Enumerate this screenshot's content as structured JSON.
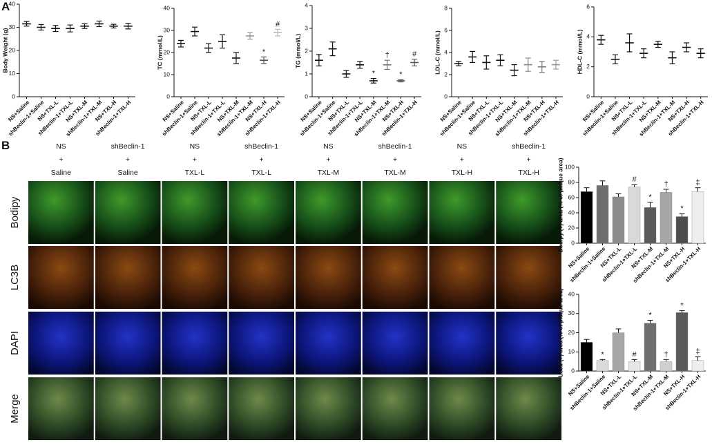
{
  "panel_labels": [
    "A",
    "B"
  ],
  "chart_data": [
    {
      "type": "errorbar",
      "ylabel": "Body Weight (g)",
      "categories": [
        "NS+Saline",
        "shBeclin-1+Saline",
        "NS+TXL-L",
        "shBeclin-1+TXL-L",
        "NS+TXL-M",
        "shBeclin-1+TXL-M",
        "NS+TXL-H",
        "shBeclin-1+TXL-H"
      ],
      "values": [
        31.5,
        30,
        29.5,
        29.5,
        30.5,
        31.5,
        30.5,
        30.5
      ],
      "errors": [
        1,
        1.2,
        1.3,
        1.5,
        1,
        1.2,
        0.8,
        1.2
      ],
      "colors": [
        "#111",
        "#111",
        "#111",
        "#111",
        "#111",
        "#111",
        "#111",
        "#111"
      ],
      "annotations": [
        null,
        null,
        null,
        null,
        null,
        null,
        null,
        null
      ],
      "ylim": [
        0,
        40
      ],
      "yticks": [
        0,
        10,
        20,
        30,
        40
      ]
    },
    {
      "type": "errorbar",
      "ylabel": "TC (mmol/L)",
      "categories": [
        "NS+Saline",
        "shBeclin-1+Saline",
        "NS+TXL-L",
        "shBeclin-1+TXL-L",
        "NS+TXL-M",
        "shBeclin-1+TXL-M",
        "NS+TXL-H",
        "shBeclin-1+TXL-H"
      ],
      "values": [
        24,
        29.5,
        22,
        25,
        17.5,
        27.5,
        16.5,
        29
      ],
      "errors": [
        1.5,
        2,
        2,
        3,
        2.5,
        1.5,
        1.5,
        1.5
      ],
      "colors": [
        "#111",
        "#111",
        "#111",
        "#111",
        "#111",
        "#999",
        "#555",
        "#bbb"
      ],
      "annotations": [
        null,
        null,
        null,
        null,
        null,
        null,
        "*",
        "#"
      ],
      "ylim": [
        0,
        40
      ],
      "yticks": [
        0,
        10,
        20,
        30,
        40
      ]
    },
    {
      "type": "errorbar",
      "ylabel": "TG (mmol/L)",
      "categories": [
        "NS+Saline",
        "shBeclin-1+Saline",
        "NS+TXL-L",
        "shBeclin-1+TXL-L",
        "NS+TXL-M",
        "shBeclin-1+TXL-M",
        "NS+TXL-H",
        "shBeclin-1+TXL-H"
      ],
      "values": [
        1.6,
        2.1,
        1.0,
        1.4,
        0.7,
        1.4,
        0.7,
        1.5
      ],
      "errors": [
        0.25,
        0.3,
        0.15,
        0.15,
        0.1,
        0.2,
        0.05,
        0.15
      ],
      "colors": [
        "#111",
        "#111",
        "#111",
        "#111",
        "#111",
        "#777",
        "#555",
        "#555"
      ],
      "annotations": [
        null,
        null,
        null,
        null,
        "*",
        "†",
        "*",
        "#"
      ],
      "ylim": [
        0,
        4
      ],
      "yticks": [
        0,
        1,
        2,
        3,
        4
      ]
    },
    {
      "type": "errorbar",
      "ylabel": "LDL-C (mmol/L)",
      "categories": [
        "NS+Saline",
        "shBeclin-1+Saline",
        "NS+TXL-L",
        "shBeclin-1+TXL-L",
        "NS+TXL-M",
        "shBeclin-1+TXL-M",
        "NS+TXL-H",
        "shBeclin-1+TXL-H"
      ],
      "values": [
        3.0,
        3.6,
        3.1,
        3.3,
        2.4,
        2.9,
        2.7,
        2.9
      ],
      "errors": [
        0.2,
        0.5,
        0.6,
        0.5,
        0.5,
        0.6,
        0.5,
        0.4
      ],
      "colors": [
        "#111",
        "#111",
        "#111",
        "#111",
        "#111",
        "#888",
        "#777",
        "#999"
      ],
      "annotations": [
        null,
        null,
        null,
        null,
        null,
        null,
        null,
        null
      ],
      "ylim": [
        0,
        8
      ],
      "yticks": [
        0,
        2,
        4,
        6,
        8
      ]
    },
    {
      "type": "errorbar",
      "ylabel": "HDL-C (mmol/L)",
      "categories": [
        "NS+Saline",
        "shBeclin-1+Saline",
        "NS+TXL-L",
        "shBeclin-1+TXL-L",
        "NS+TXL-M",
        "shBeclin-1+TXL-M",
        "NS+TXL-H",
        "shBeclin-1+TXL-H"
      ],
      "values": [
        3.8,
        2.5,
        3.6,
        2.9,
        3.5,
        2.6,
        3.3,
        2.9
      ],
      "errors": [
        0.3,
        0.3,
        0.6,
        0.3,
        0.2,
        0.4,
        0.3,
        0.3
      ],
      "colors": [
        "#111",
        "#111",
        "#111",
        "#111",
        "#111",
        "#111",
        "#111",
        "#111"
      ],
      "annotations": [
        null,
        null,
        null,
        null,
        null,
        null,
        null,
        null
      ],
      "ylim": [
        0,
        6
      ],
      "yticks": [
        0,
        2,
        4,
        6
      ]
    },
    {
      "type": "bar",
      "ylabel": "Bodipy (+) area (% of plaque area)",
      "categories": [
        "NS+Saline",
        "shBeclin-1+Saline",
        "NS+TXL-L",
        "shBeclin-1+TXL-L",
        "NS+TXL-M",
        "shBeclin-1+TXL-M",
        "NS+TXL-H",
        "shBeclin-1+TXL-H"
      ],
      "values": [
        68,
        76,
        61,
        74,
        47,
        67,
        35,
        68
      ],
      "errors": [
        5,
        6,
        4,
        3,
        7,
        4,
        4,
        5
      ],
      "colors": [
        "#000000",
        "#6e6e6e",
        "#8c8c8c",
        "#d9d9d9",
        "#5a5a5a",
        "#a6a6a6",
        "#4d4d4d",
        "#eeeeee"
      ],
      "annotations": [
        null,
        null,
        null,
        "#",
        "*",
        "†",
        "*",
        "‡"
      ],
      "ylim": [
        0,
        100
      ],
      "yticks": [
        0,
        20,
        40,
        60,
        80,
        100
      ]
    },
    {
      "type": "bar",
      "ylabel": "Lc3b (+) area (% of plaque area)",
      "categories": [
        "NS+Saline",
        "shBeclin-1+Saline",
        "NS+TXL-L",
        "shBeclin-1+TXL-L",
        "NS+TXL-M",
        "shBeclin-1+TXL-M",
        "NS+TXL-H",
        "shBeclin-1+TXL-H"
      ],
      "values": [
        15,
        5.5,
        20,
        5,
        25,
        5,
        30.5,
        5.5
      ],
      "errors": [
        1.5,
        0.5,
        2,
        1,
        1.5,
        1,
        1,
        2
      ],
      "colors": [
        "#000000",
        "#d9d9d9",
        "#a6a6a6",
        "#e6e6e6",
        "#6e6e6e",
        "#cfcfcf",
        "#5a5a5a",
        "#eeeeee"
      ],
      "annotations": [
        null,
        "*",
        null,
        "#",
        "*",
        "†",
        "*",
        "‡"
      ],
      "ylim": [
        0,
        40
      ],
      "yticks": [
        0,
        10,
        20,
        30,
        40
      ]
    }
  ],
  "micrographs": {
    "columns": [
      [
        "NS",
        "+",
        "Saline"
      ],
      [
        "shBeclin-1",
        "+",
        "Saline"
      ],
      [
        "NS",
        "+",
        "TXL-L"
      ],
      [
        "shBeclin-1",
        "+",
        "TXL-L"
      ],
      [
        "NS",
        "+",
        "TXL-M"
      ],
      [
        "shBeclin-1",
        "+",
        "TXL-M"
      ],
      [
        "NS",
        "+",
        "TXL-H"
      ],
      [
        "shBeclin-1",
        "+",
        "TXL-H"
      ]
    ],
    "rows": [
      "Bodipy",
      "LC3B",
      "DAPI",
      "Merge"
    ]
  }
}
